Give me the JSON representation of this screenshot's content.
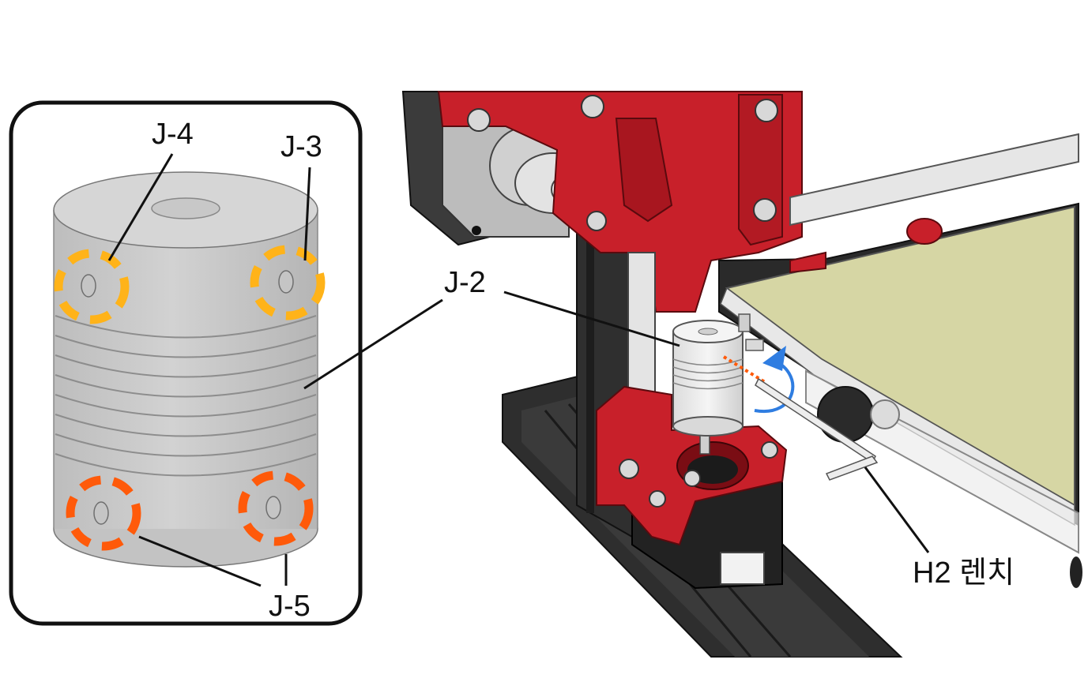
{
  "labels": {
    "j4": "J-4",
    "j3": "J-3",
    "j2": "J-2",
    "j5": "J-5",
    "wrench": "H2 렌치"
  },
  "colors": {
    "printer_frame_red": "#c8202a",
    "extrusion_black": "#2a2a2a",
    "coupling_gray": "#c9c9c9",
    "print_bed": "#d6d6a4",
    "marker_yellow": "#ffb319",
    "marker_orange": "#ff5a0a",
    "arrow_blue": "#2f7de1"
  }
}
